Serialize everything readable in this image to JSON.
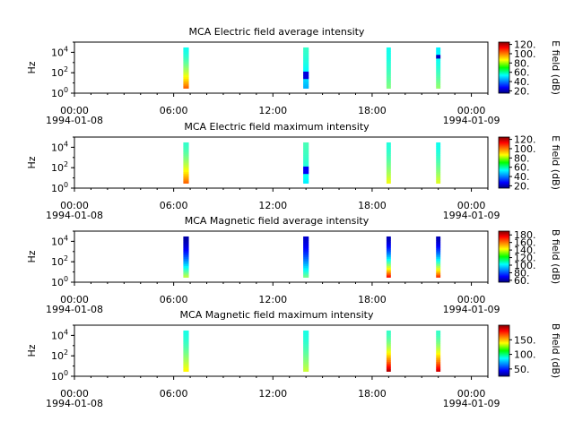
{
  "chart_data": [
    {
      "type": "heatmap",
      "title": "MCA  Electric field average intensity",
      "ylabel": "Hz",
      "ytick_labels": [
        "10^0",
        "10^2",
        "10^4"
      ],
      "yticks": [
        1,
        100,
        10000
      ],
      "ylim": [
        1,
        100000
      ],
      "yscale": "log",
      "xlim": [
        "1994-01-08 00:00",
        "1994-01-09 01:00"
      ],
      "xtick_labels": [
        "00:00\n1994-01-08",
        "06:00",
        "12:00",
        "18:00",
        "00:00\n1994-01-09"
      ],
      "colorbar": {
        "label": "E field (dB)",
        "min": 15,
        "max": 125,
        "ticks": [
          20,
          40,
          60,
          80,
          100,
          120
        ],
        "tick_labels": [
          "20.",
          "40.",
          "60.",
          "80.",
          "100.",
          "120."
        ]
      },
      "passes": [
        {
          "time": "1994-01-08 06:45",
          "duration_min": 20,
          "f_min": 3,
          "f_max": 30000,
          "v_low": 100,
          "v_high": 58,
          "mid_patch": null
        },
        {
          "time": "1994-01-08 14:00",
          "duration_min": 20,
          "f_min": 3,
          "f_max": 30000,
          "v_low": 48,
          "v_high": 62,
          "mid_patch": {
            "f_lo": 20,
            "f_hi": 150,
            "value": 25
          }
        },
        {
          "time": "1994-01-08 19:00",
          "duration_min": 16,
          "f_min": 3,
          "f_max": 30000,
          "v_low": 70,
          "v_high": 58,
          "mid_patch": null
        },
        {
          "time": "1994-01-08 22:00",
          "duration_min": 16,
          "f_min": 3,
          "f_max": 30000,
          "v_low": 72,
          "v_high": 55,
          "mid_patch": {
            "f_lo": 3000,
            "f_hi": 8000,
            "value": 22
          }
        }
      ]
    },
    {
      "type": "heatmap",
      "title": "MCA  Electric field maximum intensity",
      "ylabel": "Hz",
      "ytick_labels": [
        "10^0",
        "10^2",
        "10^4"
      ],
      "yticks": [
        1,
        100,
        10000
      ],
      "ylim": [
        1,
        100000
      ],
      "yscale": "log",
      "xlim": [
        "1994-01-08 00:00",
        "1994-01-09 01:00"
      ],
      "xtick_labels": [
        "00:00\n1994-01-08",
        "06:00",
        "12:00",
        "18:00",
        "00:00\n1994-01-09"
      ],
      "colorbar": {
        "label": "E field (dB)",
        "min": 15,
        "max": 125,
        "ticks": [
          20,
          40,
          60,
          80,
          100,
          120
        ],
        "tick_labels": [
          "20.",
          "40.",
          "60.",
          "80.",
          "100.",
          "120."
        ]
      },
      "passes": [
        {
          "time": "1994-01-08 06:45",
          "duration_min": 20,
          "f_min": 3,
          "f_max": 30000,
          "v_low": 100,
          "v_high": 62,
          "mid_patch": null
        },
        {
          "time": "1994-01-08 14:00",
          "duration_min": 20,
          "f_min": 3,
          "f_max": 30000,
          "v_low": 55,
          "v_high": 64,
          "mid_patch": {
            "f_lo": 20,
            "f_hi": 150,
            "value": 28
          }
        },
        {
          "time": "1994-01-08 19:00",
          "duration_min": 16,
          "f_min": 3,
          "f_max": 30000,
          "v_low": 82,
          "v_high": 60,
          "mid_patch": null
        },
        {
          "time": "1994-01-08 22:00",
          "duration_min": 16,
          "f_min": 3,
          "f_max": 30000,
          "v_low": 80,
          "v_high": 58,
          "mid_patch": null
        }
      ]
    },
    {
      "type": "heatmap",
      "title": "MCA  Magnetic field average intensity",
      "ylabel": "Hz",
      "ytick_labels": [
        "10^0",
        "10^2",
        "10^4"
      ],
      "yticks": [
        1,
        100,
        10000
      ],
      "ylim": [
        1,
        100000
      ],
      "yscale": "log",
      "xlim": [
        "1994-01-08 00:00",
        "1994-01-09 01:00"
      ],
      "xtick_labels": [
        "00:00\n1994-01-08",
        "06:00",
        "12:00",
        "18:00",
        "00:00\n1994-01-09"
      ],
      "colorbar": {
        "label": "B field (dB)",
        "min": 55,
        "max": 190,
        "ticks": [
          60,
          80,
          100,
          120,
          140,
          160,
          180
        ],
        "tick_labels": [
          "60.",
          "80.",
          "100.",
          "120.",
          "140.",
          "160.",
          "180."
        ]
      },
      "passes": [
        {
          "time": "1994-01-08 06:45",
          "duration_min": 20,
          "f_min": 3,
          "f_max": 30000,
          "v_low": 130,
          "v_high": 60,
          "mid_patch": null
        },
        {
          "time": "1994-01-08 14:00",
          "duration_min": 20,
          "f_min": 3,
          "f_max": 30000,
          "v_low": 120,
          "v_high": 65,
          "mid_patch": null
        },
        {
          "time": "1994-01-08 19:00",
          "duration_min": 16,
          "f_min": 3,
          "f_max": 30000,
          "v_low": 170,
          "v_high": 62,
          "mid_patch": null
        },
        {
          "time": "1994-01-08 22:00",
          "duration_min": 16,
          "f_min": 3,
          "f_max": 30000,
          "v_low": 165,
          "v_high": 62,
          "mid_patch": null
        }
      ]
    },
    {
      "type": "heatmap",
      "title": "MCA  Magnetic field maximum intensity",
      "ylabel": "Hz",
      "ytick_labels": [
        "10^0",
        "10^2",
        "10^4"
      ],
      "yticks": [
        1,
        100,
        10000
      ],
      "ylim": [
        1,
        100000
      ],
      "yscale": "log",
      "xlim": [
        "1994-01-08 00:00",
        "1994-01-09 01:00"
      ],
      "xtick_labels": [
        "00:00\n1994-01-08",
        "06:00",
        "12:00",
        "18:00",
        "00:00\n1994-01-09"
      ],
      "colorbar": {
        "label": "B field (dB)",
        "min": 25,
        "max": 200,
        "ticks": [
          50,
          100,
          150
        ],
        "tick_labels": [
          "50.",
          "100.",
          "150."
        ]
      },
      "passes": [
        {
          "time": "1994-01-08 06:45",
          "duration_min": 20,
          "f_min": 3,
          "f_max": 30000,
          "v_low": 135,
          "v_high": 95,
          "mid_patch": null
        },
        {
          "time": "1994-01-08 14:00",
          "duration_min": 20,
          "f_min": 3,
          "f_max": 30000,
          "v_low": 125,
          "v_high": 95,
          "mid_patch": null
        },
        {
          "time": "1994-01-08 19:00",
          "duration_min": 16,
          "f_min": 3,
          "f_max": 30000,
          "v_low": 190,
          "v_high": 100,
          "mid_patch": null
        },
        {
          "time": "1994-01-08 22:00",
          "duration_min": 16,
          "f_min": 3,
          "f_max": 30000,
          "v_low": 185,
          "v_high": 100,
          "mid_patch": null
        }
      ]
    }
  ]
}
